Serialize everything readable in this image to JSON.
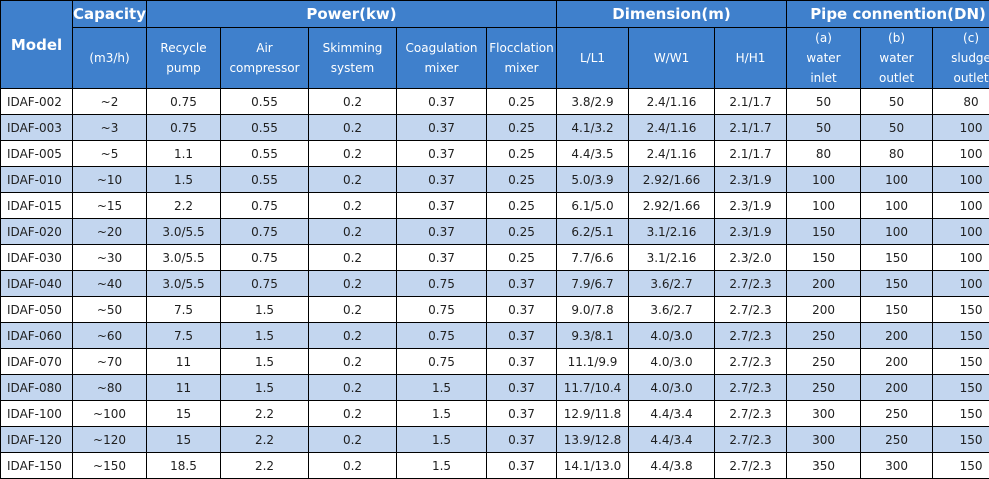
{
  "header": {
    "model": "Model",
    "capacity": "Capacity",
    "capacity_unit": "(m3/h)",
    "power": "Power(kw)",
    "dimension": "Dimension(m)",
    "pipe": "Pipe connention(DN)",
    "power_cols": [
      [
        "Recycle",
        "pump"
      ],
      [
        "Air",
        "compressor"
      ],
      [
        "Skimming",
        "system"
      ],
      [
        "Coagulation",
        "mixer"
      ],
      [
        "Flocclation",
        "mixer"
      ]
    ],
    "dimension_cols": [
      "L/L1",
      "W/W1",
      "H/H1"
    ],
    "pipe_cols": [
      [
        "(a)",
        "water",
        "inlet"
      ],
      [
        "(b)",
        "water",
        "outlet"
      ],
      [
        "(c)",
        "sludge",
        "outlet"
      ]
    ]
  },
  "rows": [
    [
      "IDAF-002",
      "~2",
      "0.75",
      "0.55",
      "0.2",
      "0.37",
      "0.25",
      "3.8/2.9",
      "2.4/1.16",
      "2.1/1.7",
      "50",
      "50",
      "80"
    ],
    [
      "IDAF-003",
      "~3",
      "0.75",
      "0.55",
      "0.2",
      "0.37",
      "0.25",
      "4.1/3.2",
      "2.4/1.16",
      "2.1/1.7",
      "50",
      "50",
      "100"
    ],
    [
      "IDAF-005",
      "~5",
      "1.1",
      "0.55",
      "0.2",
      "0.37",
      "0.25",
      "4.4/3.5",
      "2.4/1.16",
      "2.1/1.7",
      "80",
      "80",
      "100"
    ],
    [
      "IDAF-010",
      "~10",
      "1.5",
      "0.55",
      "0.2",
      "0.37",
      "0.25",
      "5.0/3.9",
      "2.92/1.66",
      "2.3/1.9",
      "100",
      "100",
      "100"
    ],
    [
      "IDAF-015",
      "~15",
      "2.2",
      "0.75",
      "0.2",
      "0.37",
      "0.25",
      "6.1/5.0",
      "2.92/1.66",
      "2.3/1.9",
      "100",
      "100",
      "100"
    ],
    [
      "IDAF-020",
      "~20",
      "3.0/5.5",
      "0.75",
      "0.2",
      "0.37",
      "0.25",
      "6.2/5.1",
      "3.1/2.16",
      "2.3/1.9",
      "150",
      "100",
      "100"
    ],
    [
      "IDAF-030",
      "~30",
      "3.0/5.5",
      "0.75",
      "0.2",
      "0.37",
      "0.25",
      "7.7/6.6",
      "3.1/2.16",
      "2.3/2.0",
      "150",
      "150",
      "100"
    ],
    [
      "IDAF-040",
      "~40",
      "3.0/5.5",
      "0.75",
      "0.2",
      "0.75",
      "0.37",
      "7.9/6.7",
      "3.6/2.7",
      "2.7/2.3",
      "200",
      "150",
      "100"
    ],
    [
      "IDAF-050",
      "~50",
      "7.5",
      "1.5",
      "0.2",
      "0.75",
      "0.37",
      "9.0/7.8",
      "3.6/2.7",
      "2.7/2.3",
      "200",
      "150",
      "150"
    ],
    [
      "IDAF-060",
      "~60",
      "7.5",
      "1.5",
      "0.2",
      "0.75",
      "0.37",
      "9.3/8.1",
      "4.0/3.0",
      "2.7/2.3",
      "250",
      "200",
      "150"
    ],
    [
      "IDAF-070",
      "~70",
      "11",
      "1.5",
      "0.2",
      "0.75",
      "0.37",
      "11.1/9.9",
      "4.0/3.0",
      "2.7/2.3",
      "250",
      "200",
      "150"
    ],
    [
      "IDAF-080",
      "~80",
      "11",
      "1.5",
      "0.2",
      "1.5",
      "0.37",
      "11.7/10.4",
      "4.0/3.0",
      "2.7/2.3",
      "250",
      "200",
      "150"
    ],
    [
      "IDAF-100",
      "~100",
      "15",
      "2.2",
      "0.2",
      "1.5",
      "0.37",
      "12.9/11.8",
      "4.4/3.4",
      "2.7/2.3",
      "300",
      "250",
      "150"
    ],
    [
      "IDAF-120",
      "~120",
      "15",
      "2.2",
      "0.2",
      "1.5",
      "0.37",
      "13.9/12.8",
      "4.4/3.4",
      "2.7/2.3",
      "300",
      "250",
      "150"
    ],
    [
      "IDAF-150",
      "~150",
      "18.5",
      "2.2",
      "0.2",
      "1.5",
      "0.37",
      "14.1/13.0",
      "4.4/3.8",
      "2.7/2.3",
      "350",
      "300",
      "150"
    ]
  ],
  "colors": {
    "header_bg": "#3f80cc",
    "header_text": "#ffffff",
    "row_alt_bg": "#c3d6ef",
    "row_bg": "#ffffff",
    "border": "#000000"
  }
}
